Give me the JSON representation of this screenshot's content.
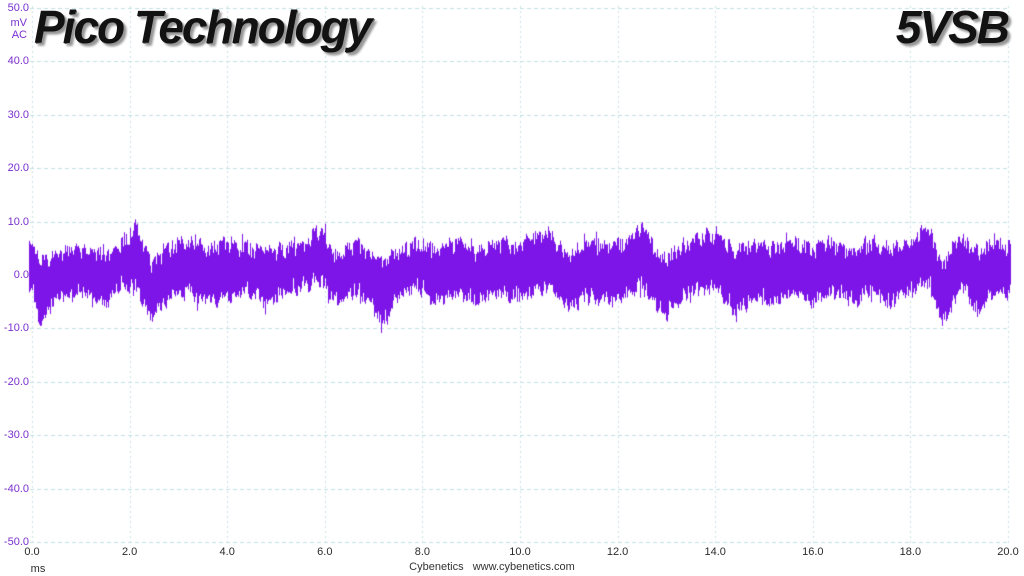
{
  "header": {
    "title": "Pico Technology",
    "channel_label": "5VSB"
  },
  "footer": {
    "credit": "Cybenetics   www.cybenetics.com"
  },
  "chart_data": {
    "type": "line",
    "title": "Pico Technology",
    "trace_label": "5VSB",
    "xlabel": "ms",
    "ylabel_units": [
      "mV",
      "AC"
    ],
    "xlim": [
      0,
      20
    ],
    "ylim": [
      -50,
      50
    ],
    "x_tick_labels": [
      "0.0",
      "2.0",
      "4.0",
      "6.0",
      "8.0",
      "10.0",
      "12.0",
      "14.0",
      "16.0",
      "18.0",
      "20.0"
    ],
    "y_tick_labels": [
      "50.0",
      "40.0",
      "30.0",
      "20.0",
      "10.0",
      "0.0",
      "-10.0",
      "-20.0",
      "-30.0",
      "-40.0",
      "-50.0"
    ],
    "grid": "dashed",
    "legend": "none",
    "colors": {
      "trace": "#7D14E8",
      "grid_horizontal": "#c2dfe2",
      "grid_vertical": "#cbe4e8",
      "y_tick_text": "#7A30D0",
      "x_tick_text": "#2b2b2b",
      "background": "#ffffff"
    },
    "signal_summary": "Dense AC ripple noise band of the 5VSB rail, mean ~0 mV, typical envelope ±3..7 mV, peak excursions ±10 mV over a 20 ms window",
    "noise_seed": 1337,
    "hf_noise_mV": 2.6,
    "envelope_mV": [
      [
        0.0,
        -4,
        6
      ],
      [
        0.15,
        -10,
        3
      ],
      [
        0.5,
        -5,
        5
      ],
      [
        1.0,
        -4,
        6
      ],
      [
        1.5,
        -6,
        5
      ],
      [
        1.8,
        -3,
        6
      ],
      [
        2.1,
        -3,
        10
      ],
      [
        2.45,
        -9,
        3
      ],
      [
        2.8,
        -5,
        6
      ],
      [
        3.2,
        -4,
        7
      ],
      [
        3.6,
        -6,
        6
      ],
      [
        4.0,
        -5,
        7
      ],
      [
        4.4,
        -4,
        6
      ],
      [
        4.8,
        -6,
        5
      ],
      [
        5.2,
        -4,
        6
      ],
      [
        5.6,
        -3,
        7
      ],
      [
        5.9,
        -2,
        10
      ],
      [
        6.2,
        -6,
        4
      ],
      [
        6.6,
        -4,
        7
      ],
      [
        6.9,
        -5,
        5
      ],
      [
        7.15,
        -10,
        3
      ],
      [
        7.5,
        -5,
        5
      ],
      [
        7.9,
        -3,
        7
      ],
      [
        8.3,
        -6,
        6
      ],
      [
        8.7,
        -4,
        7
      ],
      [
        9.1,
        -6,
        5
      ],
      [
        9.5,
        -4,
        7
      ],
      [
        9.9,
        -5,
        6
      ],
      [
        10.3,
        -4,
        8
      ],
      [
        10.6,
        -3,
        9
      ],
      [
        11.0,
        -7,
        4
      ],
      [
        11.4,
        -5,
        7
      ],
      [
        11.8,
        -6,
        6
      ],
      [
        12.2,
        -4,
        7
      ],
      [
        12.5,
        -3,
        10
      ],
      [
        12.9,
        -8,
        4
      ],
      [
        13.3,
        -5,
        6
      ],
      [
        13.7,
        -4,
        8
      ],
      [
        14.0,
        -3,
        9
      ],
      [
        14.4,
        -8,
        5
      ],
      [
        14.8,
        -5,
        7
      ],
      [
        15.2,
        -6,
        6
      ],
      [
        15.6,
        -4,
        7
      ],
      [
        16.0,
        -6,
        6
      ],
      [
        16.4,
        -4,
        7
      ],
      [
        16.8,
        -6,
        5
      ],
      [
        17.2,
        -4,
        7
      ],
      [
        17.6,
        -6,
        6
      ],
      [
        18.0,
        -4,
        7
      ],
      [
        18.35,
        -2,
        10
      ],
      [
        18.65,
        -10,
        3
      ],
      [
        19.0,
        -3,
        8
      ],
      [
        19.4,
        -8,
        5
      ],
      [
        19.7,
        -4,
        7
      ],
      [
        20.0,
        -4,
        6
      ]
    ]
  }
}
